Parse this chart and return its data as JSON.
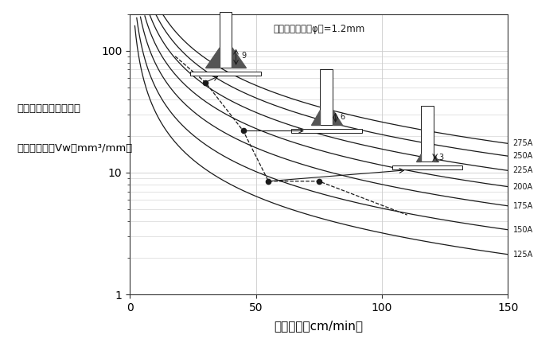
{
  "ylabel_line1": "単位溶接長さ当たりの",
  "ylabel_line2": "溶着金属量：Vw（mm³/mm）",
  "xlabel": "溶接速度（cm/min）",
  "annotation_text_phi": "溶接ワイヤ径（φ）=1.2mm",
  "xlim": [
    0,
    150
  ],
  "ylim_log": [
    1,
    200
  ],
  "grid_color": "#cccccc",
  "background_color": "#ffffff",
  "line_color": "#1a1a1a",
  "curve_labels": [
    "275A",
    "250A",
    "225A",
    "200A",
    "175A",
    "150A",
    "125A"
  ],
  "k_values": [
    2600,
    2050,
    1560,
    1150,
    800,
    510,
    320
  ],
  "dashed_x": [
    18,
    30,
    45,
    55,
    75,
    110
  ],
  "dashed_y": [
    90,
    55,
    22,
    8.5,
    8.5,
    4.5
  ],
  "dot_points": [
    [
      30,
      55
    ],
    [
      45,
      22
    ],
    [
      55,
      8.5
    ],
    [
      75,
      8.5
    ]
  ],
  "icon_positions": [
    {
      "ix": 38,
      "iy": 65,
      "leg": 9
    },
    {
      "ix": 78,
      "iy": 22,
      "leg": 6
    },
    {
      "ix": 118,
      "iy": 11,
      "leg": 3
    }
  ],
  "arrow_pairs": [
    [
      [
        30,
        55
      ],
      [
        36,
        63
      ]
    ],
    [
      [
        45,
        22
      ],
      [
        70,
        22
      ]
    ],
    [
      [
        55,
        8.5
      ],
      [
        110,
        10.5
      ]
    ]
  ]
}
